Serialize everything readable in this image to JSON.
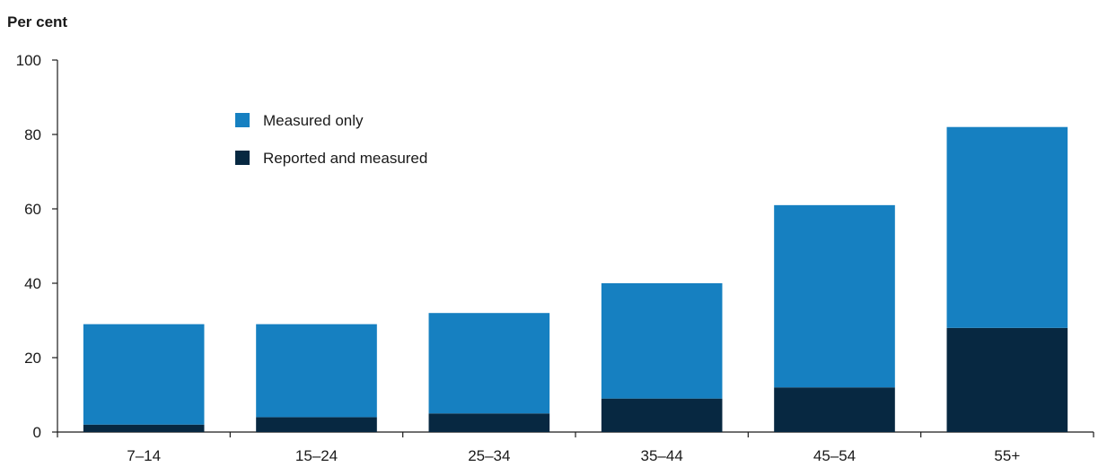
{
  "chart_data": {
    "type": "bar",
    "stacked": true,
    "ylabel": "Per cent",
    "xlabel": "",
    "ylim": [
      0,
      100
    ],
    "yticks": [
      0,
      20,
      40,
      60,
      80,
      100
    ],
    "categories": [
      "7–14",
      "15–24",
      "25–34",
      "35–44",
      "45–54",
      "55+"
    ],
    "series": [
      {
        "name": "Reported and measured",
        "color": "#072841",
        "values": [
          2,
          4,
          5,
          9,
          12,
          28
        ]
      },
      {
        "name": "Measured only",
        "color": "#1680c1",
        "values": [
          27,
          25,
          27,
          31,
          49,
          54
        ]
      }
    ],
    "legend": {
      "position": "top-left",
      "order": [
        "Measured only",
        "Reported and measured"
      ]
    },
    "grid": false
  }
}
